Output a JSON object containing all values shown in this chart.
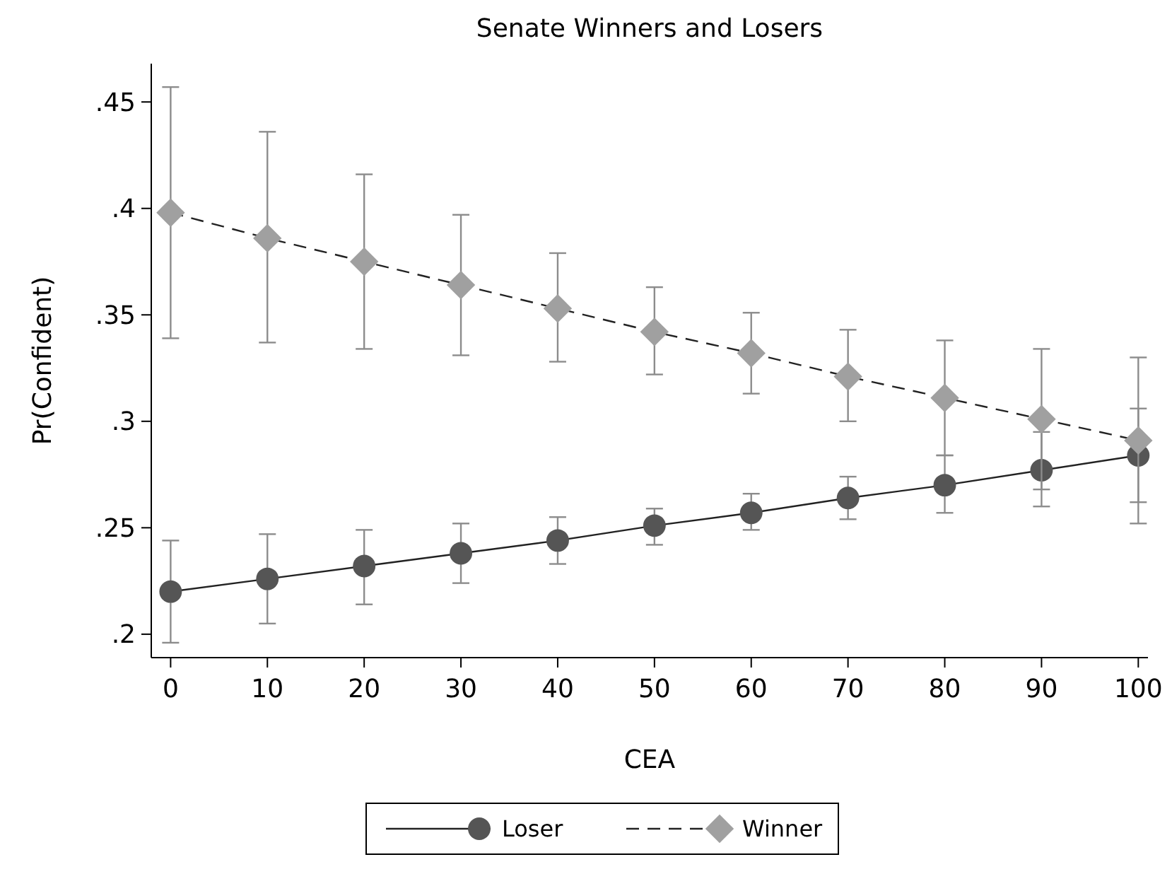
{
  "chart_data": {
    "type": "line",
    "title": "Senate Winners and Losers",
    "xlabel": "CEA",
    "ylabel": "Pr(Confident)",
    "x": [
      0,
      10,
      20,
      30,
      40,
      50,
      60,
      70,
      80,
      90,
      100
    ],
    "xlim": [
      -2,
      101
    ],
    "xticks": [
      0,
      10,
      20,
      30,
      40,
      50,
      60,
      70,
      80,
      90,
      100
    ],
    "ylim": [
      0.189,
      0.468
    ],
    "yticks": [
      {
        "value": 0.2,
        "label": ".2"
      },
      {
        "value": 0.25,
        "label": ".25"
      },
      {
        "value": 0.3,
        "label": ".3"
      },
      {
        "value": 0.35,
        "label": ".35"
      },
      {
        "value": 0.4,
        "label": ".4"
      },
      {
        "value": 0.45,
        "label": ".45"
      }
    ],
    "grid": false,
    "legend": "bottom",
    "series": [
      {
        "name": "Loser",
        "color": "#555555",
        "marker": "circle",
        "line_style": "solid",
        "values": [
          0.22,
          0.226,
          0.232,
          0.238,
          0.244,
          0.251,
          0.257,
          0.264,
          0.27,
          0.277,
          0.284
        ],
        "errors": [
          [
            0.196,
            0.244
          ],
          [
            0.205,
            0.247
          ],
          [
            0.214,
            0.249
          ],
          [
            0.224,
            0.252
          ],
          [
            0.233,
            0.255
          ],
          [
            0.242,
            0.259
          ],
          [
            0.249,
            0.266
          ],
          [
            0.254,
            0.274
          ],
          [
            0.257,
            0.284
          ],
          [
            0.26,
            0.295
          ],
          [
            0.262,
            0.306
          ]
        ]
      },
      {
        "name": "Winner",
        "color": "#a0a0a0",
        "marker": "diamond",
        "line_style": "dashed",
        "values": [
          0.398,
          0.386,
          0.375,
          0.364,
          0.353,
          0.342,
          0.332,
          0.321,
          0.311,
          0.301,
          0.291
        ],
        "errors": [
          [
            0.339,
            0.457
          ],
          [
            0.337,
            0.436
          ],
          [
            0.334,
            0.416
          ],
          [
            0.331,
            0.397
          ],
          [
            0.328,
            0.379
          ],
          [
            0.322,
            0.363
          ],
          [
            0.313,
            0.351
          ],
          [
            0.3,
            0.343
          ],
          [
            0.284,
            0.338
          ],
          [
            0.268,
            0.334
          ],
          [
            0.252,
            0.33
          ]
        ]
      }
    ]
  }
}
